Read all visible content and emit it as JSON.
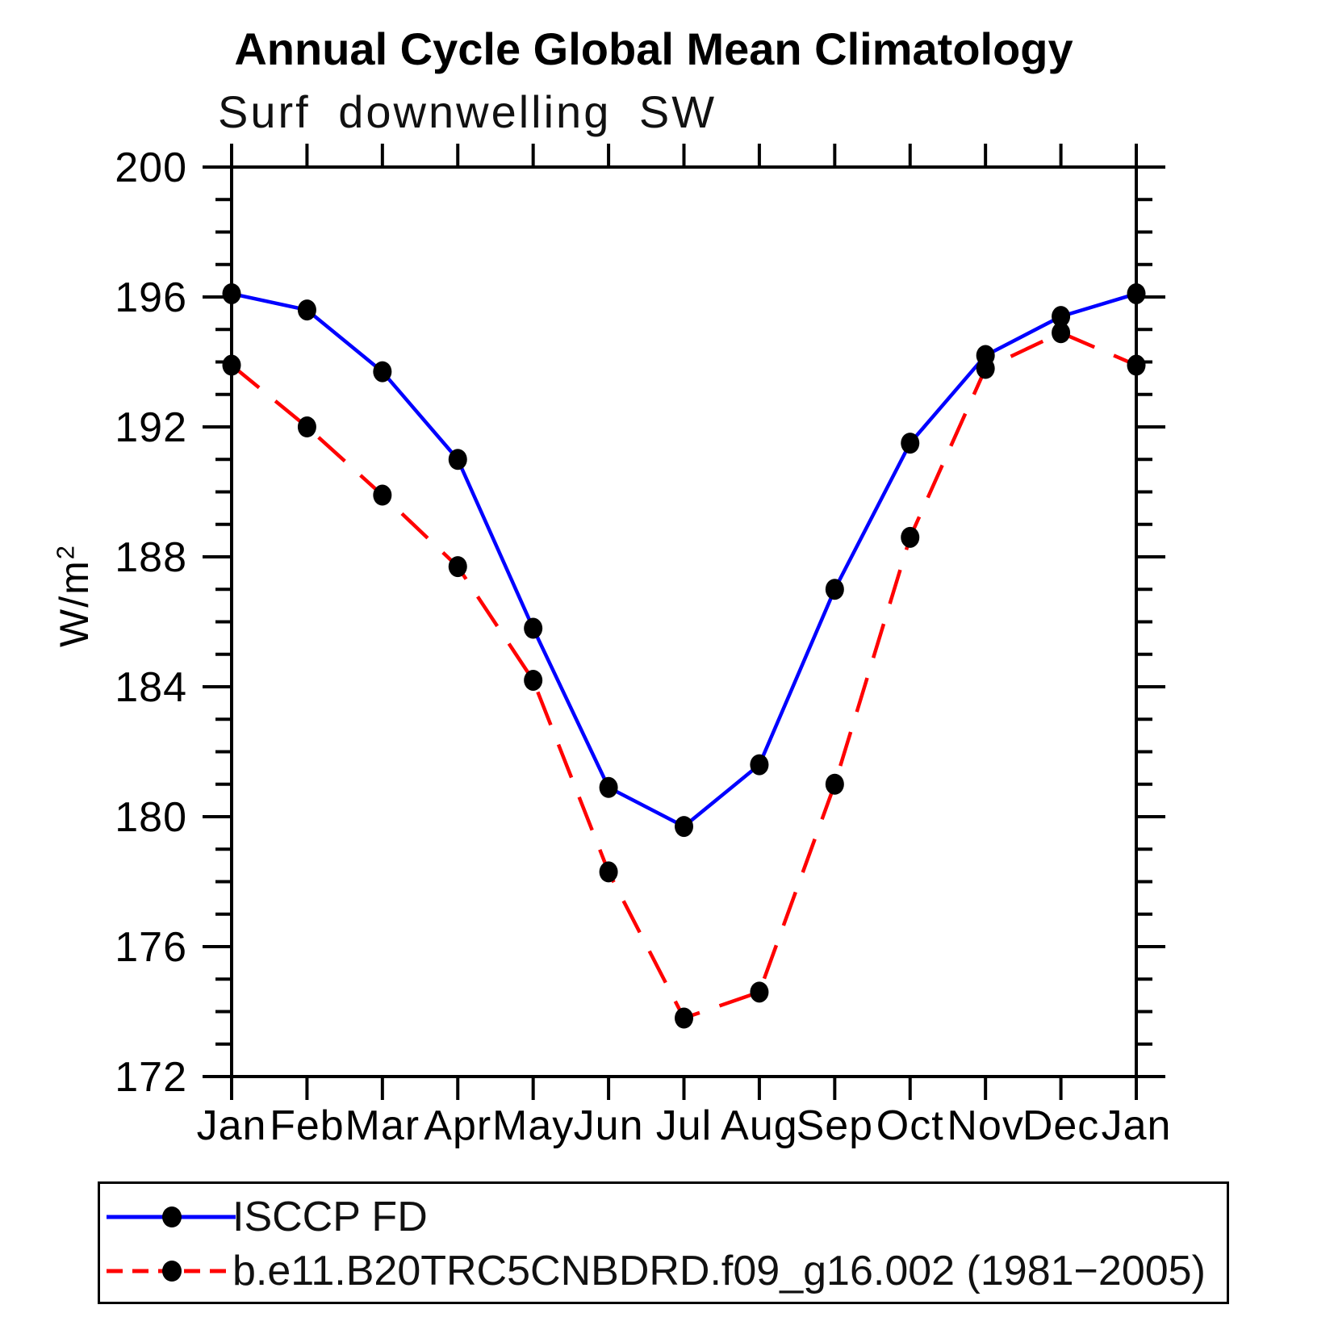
{
  "header": {
    "title": "Annual Cycle Global Mean Climatology",
    "subtitle": "Surf downwelling SW"
  },
  "chart_data": {
    "type": "line",
    "title": "Annual Cycle Global Mean Climatology",
    "subtitle": "Surf downwelling SW",
    "xlabel": "",
    "ylabel": "W/m²",
    "ylabel_base": "W/m",
    "ylabel_exponent": "2",
    "x_tick_labels": [
      "Jan",
      "Feb",
      "Mar",
      "Apr",
      "May",
      "Jun",
      "Jul",
      "Aug",
      "Sep",
      "Oct",
      "Nov",
      "Dec",
      "Jan"
    ],
    "y_tick_labels": [
      172,
      176,
      180,
      184,
      188,
      192,
      196,
      200
    ],
    "ylim": [
      172,
      200
    ],
    "y_minor_step": 1,
    "grid": false,
    "legend_position": "bottom-box",
    "axis_color": "#000000",
    "marker": "filled-black-dot",
    "series": [
      {
        "name": "ISCCP FD",
        "color": "#0000ff",
        "style": "solid",
        "values": [
          196.1,
          195.6,
          193.7,
          191.0,
          185.8,
          180.9,
          179.7,
          181.6,
          187.0,
          191.5,
          194.2,
          195.4,
          196.1
        ]
      },
      {
        "name": "b.e11.B20TRC5CNBDRD.f09_g16.002 (1981−2005)",
        "color": "#ff0000",
        "style": "dashed",
        "values": [
          193.9,
          192.0,
          189.9,
          187.7,
          184.2,
          178.3,
          173.8,
          174.6,
          181.0,
          188.6,
          193.8,
          194.9,
          193.9
        ]
      }
    ]
  }
}
